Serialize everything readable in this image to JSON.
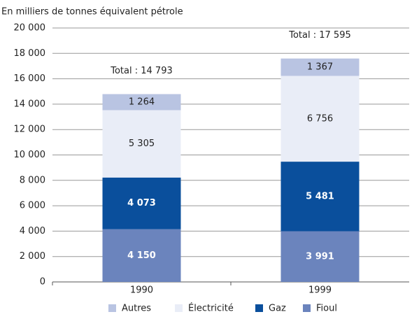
{
  "chart_data": {
    "type": "stacked_bar",
    "ylabel": "En milliers de tonnes équivalent pétrole",
    "categories": [
      "1990",
      "1999"
    ],
    "series": [
      {
        "name": "Fioul",
        "color": "#6b84bd",
        "label_color": "#ffffff",
        "values": [
          4150,
          3991
        ],
        "value_labels": [
          "4 150",
          "3 991"
        ]
      },
      {
        "name": "Gaz",
        "color": "#0a4f9c",
        "label_color": "#ffffff",
        "values": [
          4073,
          5481
        ],
        "value_labels": [
          "4 073",
          "5 481"
        ]
      },
      {
        "name": "Électricité",
        "color": "#e9edf7",
        "label_color": "#222222",
        "values": [
          5305,
          6756
        ],
        "value_labels": [
          "5 305",
          "6 756"
        ]
      },
      {
        "name": "Autres",
        "color": "#b9c4e2",
        "label_color": "#222222",
        "values": [
          1264,
          1367
        ],
        "value_labels": [
          "1 264",
          "1 367"
        ]
      }
    ],
    "total_labels": [
      "Total : 14 793",
      "Total : 17 595"
    ],
    "ylim": [
      0,
      20000
    ],
    "yticks": [
      0,
      {
        "value": 2000,
        "label": "2 000"
      },
      {
        "value": 4000,
        "label": "4 000"
      },
      {
        "value": 6000,
        "label": "6 000"
      },
      {
        "value": 8000,
        "label": "8 000"
      },
      {
        "value": 10000,
        "label": "10 000"
      },
      {
        "value": 12000,
        "label": "12 000"
      },
      {
        "value": 14000,
        "label": "14 000"
      },
      {
        "value": 16000,
        "label": "16 000"
      },
      {
        "value": 18000,
        "label": "18 000"
      },
      {
        "value": 20000,
        "label": "20 000"
      }
    ],
    "grid": true
  }
}
